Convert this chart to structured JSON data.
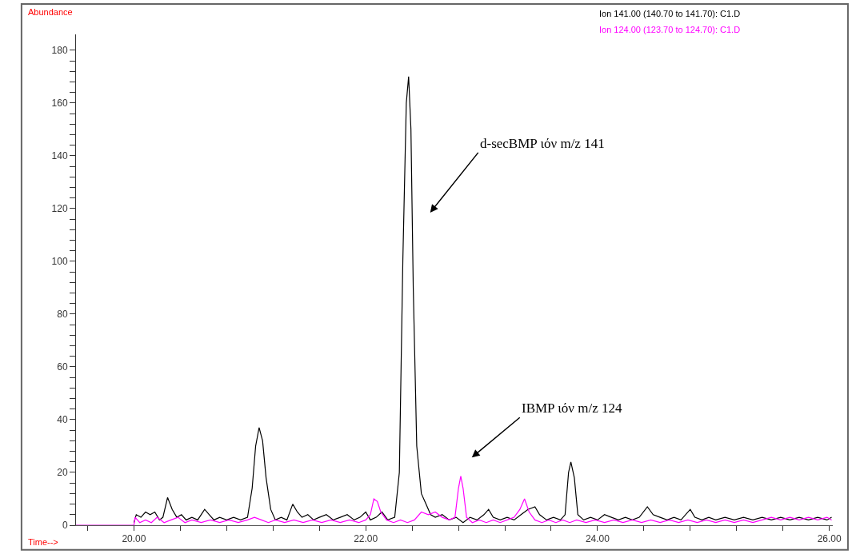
{
  "chart_data": {
    "type": "line",
    "xlabel": "Time-->",
    "ylabel": "Abundance",
    "xlim": [
      19.5,
      26.03
    ],
    "xticks": [
      {
        "value": 19.6,
        "label": null
      },
      {
        "value": 20,
        "label": "20.00"
      },
      {
        "value": 20.4,
        "label": null
      },
      {
        "value": 20.8,
        "label": null
      },
      {
        "value": 21.2,
        "label": null
      },
      {
        "value": 21.6,
        "label": null
      },
      {
        "value": 22,
        "label": "22.00"
      },
      {
        "value": 22.4,
        "label": null
      },
      {
        "value": 22.8,
        "label": null
      },
      {
        "value": 23.2,
        "label": null
      },
      {
        "value": 23.6,
        "label": null
      },
      {
        "value": 24,
        "label": "24.00"
      },
      {
        "value": 24.4,
        "label": null
      },
      {
        "value": 24.8,
        "label": null
      },
      {
        "value": 25.2,
        "label": null
      },
      {
        "value": 25.6,
        "label": null
      },
      {
        "value": 26,
        "label": "26.00"
      }
    ],
    "ylim": [
      0,
      186
    ],
    "yticks": [
      0,
      {
        "value": 4,
        "label": null
      },
      {
        "value": 8,
        "label": null
      },
      {
        "value": 12,
        "label": null
      },
      {
        "value": 16,
        "label": null
      },
      20,
      {
        "value": 24,
        "label": null
      },
      {
        "value": 28,
        "label": null
      },
      {
        "value": 32,
        "label": null
      },
      {
        "value": 36,
        "label": null
      },
      40,
      {
        "value": 44,
        "label": null
      },
      {
        "value": 48,
        "label": null
      },
      {
        "value": 52,
        "label": null
      },
      {
        "value": 56,
        "label": null
      },
      60,
      {
        "value": 64,
        "label": null
      },
      {
        "value": 68,
        "label": null
      },
      {
        "value": 72,
        "label": null
      },
      {
        "value": 76,
        "label": null
      },
      80,
      {
        "value": 84,
        "label": null
      },
      {
        "value": 88,
        "label": null
      },
      {
        "value": 92,
        "label": null
      },
      {
        "value": 96,
        "label": null
      },
      100,
      {
        "value": 104,
        "label": null
      },
      {
        "value": 108,
        "label": null
      },
      {
        "value": 112,
        "label": null
      },
      {
        "value": 116,
        "label": null
      },
      120,
      {
        "value": 124,
        "label": null
      },
      {
        "value": 128,
        "label": null
      },
      {
        "value": 132,
        "label": null
      },
      {
        "value": 136,
        "label": null
      },
      140,
      {
        "value": 144,
        "label": null
      },
      {
        "value": 148,
        "label": null
      },
      {
        "value": 152,
        "label": null
      },
      {
        "value": 156,
        "label": null
      },
      160,
      {
        "value": 164,
        "label": null
      },
      {
        "value": 168,
        "label": null
      },
      {
        "value": 172,
        "label": null
      },
      {
        "value": 176,
        "label": null
      },
      180
    ],
    "legend": "top right",
    "marker": "none",
    "line_style": "solid",
    "series": [
      {
        "name": "Ion 141.00 (140.70 to 141.70): C1.D",
        "color": "#000000",
        "x": [
          20.0,
          20.02,
          20.06,
          20.1,
          20.14,
          20.18,
          20.22,
          20.25,
          20.29,
          20.33,
          20.37,
          20.41,
          20.45,
          20.5,
          20.55,
          20.61,
          20.65,
          20.69,
          20.74,
          20.8,
          20.86,
          20.92,
          20.98,
          21.02,
          21.05,
          21.08,
          21.11,
          21.14,
          21.18,
          21.22,
          21.27,
          21.32,
          21.37,
          21.41,
          21.45,
          21.5,
          21.55,
          21.6,
          21.66,
          21.72,
          21.78,
          21.84,
          21.9,
          21.95,
          22.0,
          22.04,
          22.09,
          22.14,
          22.19,
          22.25,
          22.29,
          22.32,
          22.35,
          22.37,
          22.39,
          22.41,
          22.44,
          22.48,
          22.52,
          22.56,
          22.6,
          22.66,
          22.72,
          22.78,
          22.84,
          22.9,
          22.96,
          23.02,
          23.06,
          23.1,
          23.16,
          23.22,
          23.28,
          23.34,
          23.4,
          23.46,
          23.5,
          23.56,
          23.62,
          23.68,
          23.72,
          23.75,
          23.77,
          23.8,
          23.83,
          23.88,
          23.94,
          24.0,
          24.06,
          24.12,
          24.18,
          24.24,
          24.3,
          24.36,
          24.43,
          24.48,
          24.54,
          24.6,
          24.66,
          24.72,
          24.8,
          24.84,
          24.9,
          24.96,
          25.02,
          25.1,
          25.18,
          25.26,
          25.34,
          25.42,
          25.5,
          25.58,
          25.66,
          25.74,
          25.82,
          25.9,
          25.98,
          26.02
        ],
        "values": [
          1,
          4,
          3,
          5,
          4,
          5,
          2,
          3,
          10.5,
          6,
          3,
          4,
          2,
          3,
          2,
          6,
          4,
          2,
          3,
          2,
          3,
          2,
          3,
          14,
          30,
          37,
          32,
          18,
          6,
          2,
          3,
          2,
          8,
          5,
          3,
          4,
          2,
          3,
          4,
          2,
          3,
          4,
          2,
          3,
          5,
          2,
          3,
          5,
          2,
          3,
          20,
          100,
          160,
          170,
          150,
          90,
          30,
          12,
          8,
          4,
          3,
          4,
          2,
          3,
          1,
          3,
          2,
          4,
          6,
          3,
          2,
          3,
          2,
          4,
          6,
          7,
          4,
          2,
          3,
          2,
          4,
          20,
          24,
          18,
          4,
          2,
          3,
          2,
          4,
          3,
          2,
          3,
          2,
          3,
          7,
          4,
          3,
          2,
          3,
          2,
          6,
          3,
          2,
          3,
          2,
          3,
          2,
          3,
          2,
          3,
          2,
          3,
          2,
          3,
          2,
          3,
          2,
          3
        ]
      },
      {
        "name": "Ion 124.00 (123.70 to 124.70): C1.D",
        "color": "#ff00ff",
        "x": [
          19.5,
          20.0,
          20.01,
          20.05,
          20.1,
          20.15,
          20.2,
          20.26,
          20.32,
          20.38,
          20.44,
          20.5,
          20.58,
          20.66,
          20.74,
          20.82,
          20.9,
          20.98,
          21.04,
          21.1,
          21.16,
          21.22,
          21.3,
          21.38,
          21.46,
          21.54,
          21.62,
          21.7,
          21.78,
          21.86,
          21.94,
          22.0,
          22.04,
          22.07,
          22.1,
          22.13,
          22.18,
          22.24,
          22.3,
          22.36,
          22.42,
          22.48,
          22.54,
          22.6,
          22.66,
          22.72,
          22.77,
          22.8,
          22.82,
          22.84,
          22.87,
          22.92,
          22.98,
          23.04,
          23.1,
          23.16,
          23.22,
          23.28,
          23.33,
          23.37,
          23.41,
          23.46,
          23.52,
          23.58,
          23.64,
          23.7,
          23.76,
          23.82,
          23.9,
          23.98,
          24.06,
          24.14,
          24.22,
          24.3,
          24.38,
          24.46,
          24.54,
          24.62,
          24.7,
          24.78,
          24.86,
          24.94,
          25.02,
          25.1,
          25.18,
          25.26,
          25.34,
          25.42,
          25.5,
          25.58,
          25.66,
          25.74,
          25.82,
          25.9,
          25.98,
          26.02
        ],
        "values": [
          0,
          0,
          3,
          1,
          2,
          1,
          3,
          1,
          2,
          3,
          1,
          2,
          1,
          2,
          1,
          2,
          1,
          2,
          3,
          2,
          1,
          2,
          1,
          2,
          1,
          2,
          1,
          2,
          1,
          2,
          1,
          2,
          4,
          10,
          9,
          5,
          2,
          1,
          2,
          1,
          2,
          5,
          4,
          5,
          3,
          2,
          3,
          14,
          18.6,
          14,
          3,
          1,
          2,
          1,
          2,
          1,
          2,
          3,
          6,
          10,
          5,
          2,
          1,
          2,
          1,
          2,
          1,
          2,
          1,
          2,
          1,
          2,
          1,
          2,
          1,
          2,
          1,
          2,
          1,
          2,
          1,
          2,
          1,
          2,
          1,
          2,
          1,
          2,
          3,
          2,
          3,
          2,
          3,
          2,
          3,
          2
        ]
      }
    ],
    "annotations": [
      "d-secBMP ιόν m/z 141",
      "IBMP ιόν m/z 124"
    ]
  }
}
